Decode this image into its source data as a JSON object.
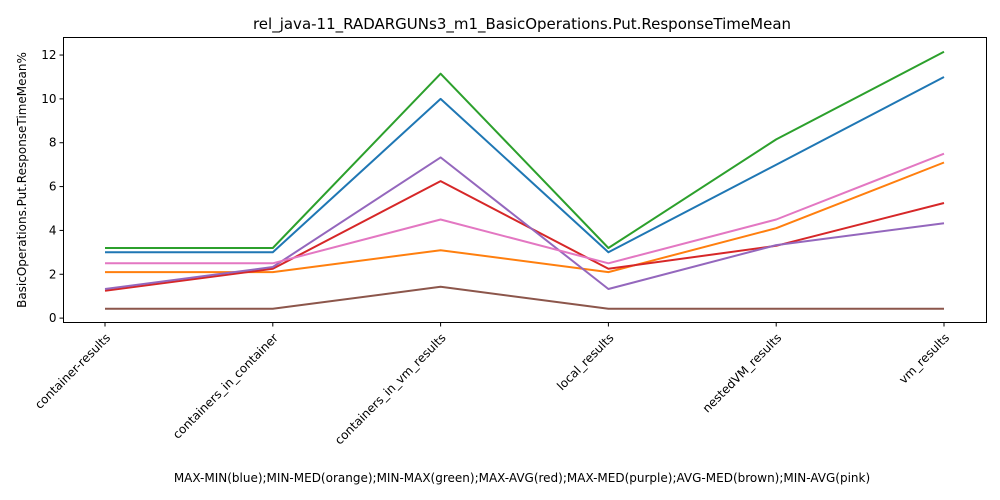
{
  "chart_data": {
    "type": "line",
    "title": "rel_java-11_RADARGUNs3_m1_BasicOperations.Put.ResponseTimeMean",
    "xlabel": "MAX-MIN(blue);MIN-MED(orange);MIN-MAX(green);MAX-AVG(red);MAX-MED(purple);AVG-MED(brown);MIN-AVG(pink)",
    "ylabel": "BasicOperations.Put.ResponseTimeMean%",
    "categories": [
      "container-results",
      "containers_in_container",
      "containers_in_vm_results",
      "local_results",
      "nestedVM_results",
      "vm_results"
    ],
    "ylim": [
      -0.2,
      12.8
    ],
    "yticks": [
      0,
      2,
      4,
      6,
      8,
      10,
      12
    ],
    "grid": false,
    "series": [
      {
        "color": "#1f77b4",
        "values": [
          3.0,
          3.0,
          10.0,
          3.0,
          7.0,
          11.0
        ]
      },
      {
        "color": "#ff7f0e",
        "values": [
          2.1,
          2.1,
          3.1,
          2.1,
          4.1,
          7.1
        ]
      },
      {
        "color": "#2ca02c",
        "values": [
          3.2,
          3.2,
          11.15,
          3.2,
          8.15,
          12.15
        ]
      },
      {
        "color": "#d62728",
        "values": [
          1.25,
          2.25,
          6.25,
          2.25,
          3.3,
          5.25
        ]
      },
      {
        "color": "#9467bd",
        "values": [
          1.33,
          2.33,
          7.33,
          1.33,
          3.33,
          4.33
        ]
      },
      {
        "color": "#8c564b",
        "values": [
          0.43,
          0.43,
          1.43,
          0.43,
          0.43,
          0.43
        ]
      },
      {
        "color": "#e377c2",
        "values": [
          2.5,
          2.5,
          4.5,
          2.5,
          4.5,
          7.5
        ]
      }
    ]
  }
}
